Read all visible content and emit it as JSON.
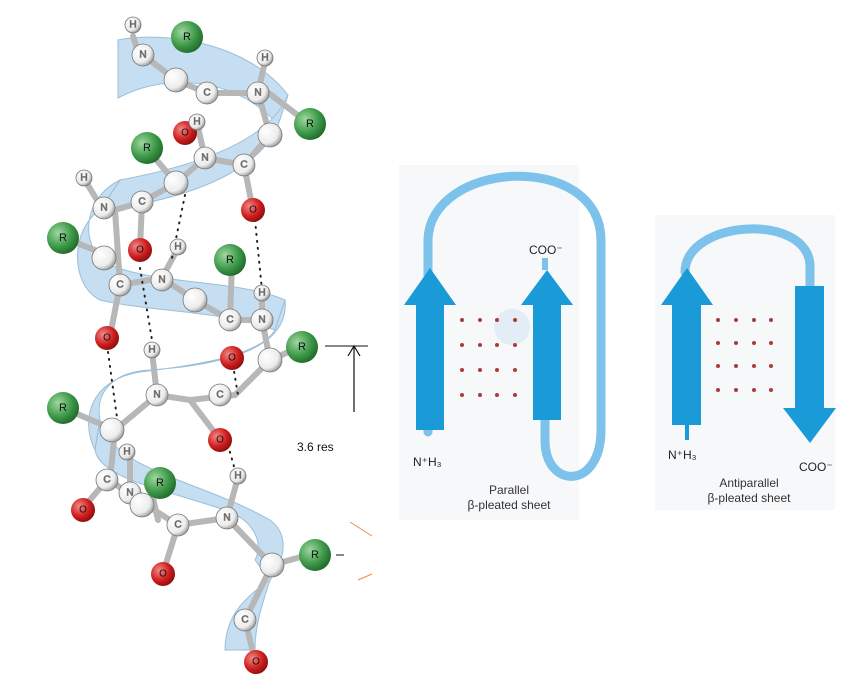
{
  "helix": {
    "atoms": {
      "n": "N",
      "c": "C",
      "o": "O",
      "h": "H",
      "r": "R"
    },
    "rise_label": "3.6 res"
  },
  "parallel_sheet": {
    "caption_line1": "Parallel",
    "caption_line2": "β-pleated sheet",
    "n_terminus": "N⁺H₃",
    "c_terminus": "COO⁻"
  },
  "antiparallel_sheet": {
    "caption_line1": "Antiparallel",
    "caption_line2": "β-pleated sheet",
    "n_terminus": "N⁺H₃",
    "c_terminus": "COO⁻"
  },
  "colors": {
    "ribbon": "#bcd9ef",
    "arrow": "#1a9ad6",
    "loop": "#7cc2ea",
    "r_group": "#3f9a4a",
    "oxygen": "#d21e1e",
    "carbon_nitrogen": "#f2f2f2",
    "hbond_dots": "#b03a3a"
  }
}
